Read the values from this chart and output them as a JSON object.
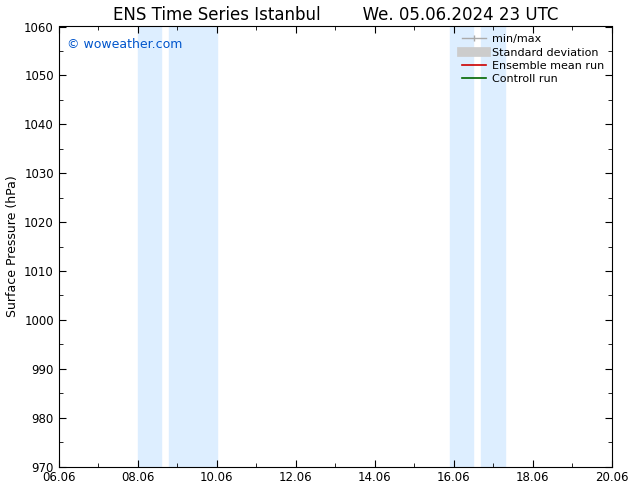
{
  "title_left": "ENS Time Series Istanbul",
  "title_right": "We. 05.06.2024 23 UTC",
  "ylabel": "Surface Pressure (hPa)",
  "xlabel_ticks": [
    "06.06",
    "08.06",
    "10.06",
    "12.06",
    "14.06",
    "16.06",
    "18.06",
    "20.06"
  ],
  "xlim": [
    0,
    14
  ],
  "ylim": [
    970,
    1060
  ],
  "yticks": [
    970,
    980,
    990,
    1000,
    1010,
    1020,
    1030,
    1040,
    1050,
    1060
  ],
  "shade_regions": [
    {
      "xmin": 2.0,
      "xmax": 2.6
    },
    {
      "xmin": 2.8,
      "xmax": 4.0
    },
    {
      "xmin": 9.9,
      "xmax": 10.5
    },
    {
      "xmin": 10.7,
      "xmax": 11.3
    }
  ],
  "shade_color": "#ddeeff",
  "watermark": "© woweather.com",
  "watermark_color": "#0055cc",
  "background_color": "#ffffff",
  "axes_edge_color": "#000000",
  "title_fontsize": 12,
  "ylabel_fontsize": 9,
  "tick_fontsize": 8.5,
  "legend_fontsize": 8
}
